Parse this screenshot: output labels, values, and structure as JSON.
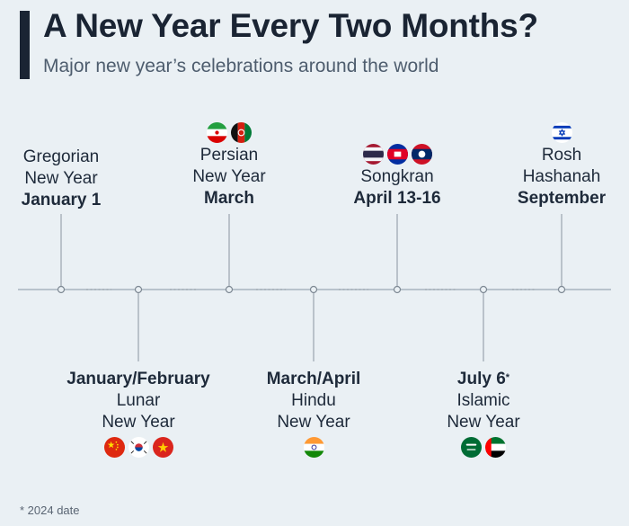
{
  "header": {
    "title": "A New Year Every Two Months?",
    "subtitle": "Major new year’s celebrations around the world"
  },
  "colors": {
    "line": "#b8c3cc",
    "node": "#8a959f",
    "text": "#1e2a3a"
  },
  "events": [
    {
      "id": "gregorian",
      "name": [
        "Gregorian",
        "New Year"
      ],
      "date": "January 1",
      "flags": []
    },
    {
      "id": "lunar",
      "name": [
        "Lunar",
        "New Year"
      ],
      "date": "January/February",
      "flags": [
        "china-flag-icon",
        "south-korea-flag-icon",
        "vietnam-flag-icon"
      ]
    },
    {
      "id": "persian",
      "name": [
        "Persian",
        "New Year"
      ],
      "date": "March",
      "flags": [
        "iran-flag-icon",
        "afghanistan-flag-icon"
      ]
    },
    {
      "id": "hindu",
      "name": [
        "Hindu",
        "New Year"
      ],
      "date": "March/April",
      "flags": [
        "india-flag-icon"
      ]
    },
    {
      "id": "songkran",
      "name": [
        "Songkran"
      ],
      "date": "April 13-16",
      "flags": [
        "thailand-flag-icon",
        "cambodia-flag-icon",
        "laos-flag-icon"
      ]
    },
    {
      "id": "islamic",
      "name": [
        "Islamic",
        "New Year"
      ],
      "date": "July 6",
      "date_mark": "*",
      "flags": [
        "saudi-arabia-flag-icon",
        "uae-flag-icon"
      ]
    },
    {
      "id": "rosh",
      "name": [
        "Rosh",
        "Hashanah"
      ],
      "date": "September",
      "flags": [
        "israel-flag-icon"
      ]
    }
  ],
  "footnote": "* 2024 date"
}
